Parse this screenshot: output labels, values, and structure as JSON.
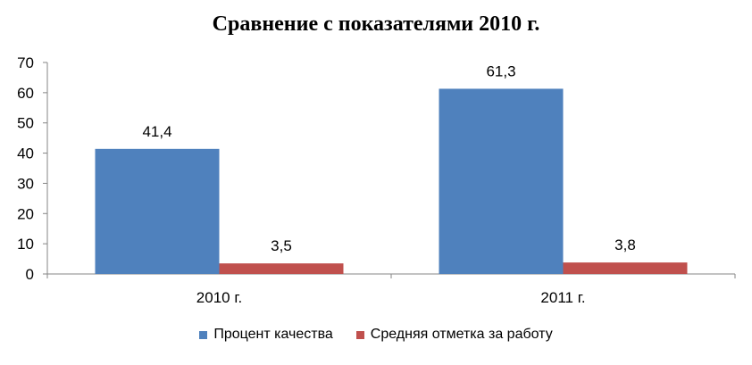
{
  "chart_data": {
    "type": "bar",
    "title": "Сравнение с показателями 2010 г.",
    "categories": [
      "2010 г.",
      "2011 г."
    ],
    "series": [
      {
        "name": "Процент качества",
        "color": "#4F81BD",
        "values": [
          41.4,
          61.3
        ],
        "labels": [
          "41,4",
          "61,3"
        ]
      },
      {
        "name": "Средняя отметка за работу",
        "color": "#C0504D",
        "values": [
          3.5,
          3.8
        ],
        "labels": [
          "3,5",
          "3,8"
        ]
      }
    ],
    "ylim": [
      0,
      70
    ],
    "yticks": [
      0,
      10,
      20,
      30,
      40,
      50,
      60,
      70
    ],
    "grid": false,
    "legend_position": "bottom"
  }
}
